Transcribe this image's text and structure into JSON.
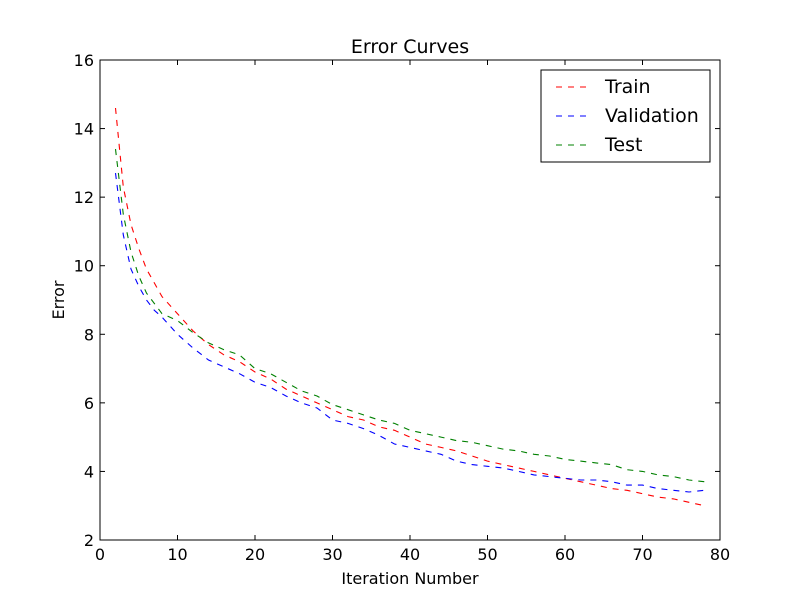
{
  "chart_data": {
    "type": "line",
    "title": "Error Curves",
    "xlabel": "Iteration Number",
    "ylabel": "Error",
    "xlim": [
      0,
      80
    ],
    "ylim": [
      2,
      16
    ],
    "xticks": [
      0,
      10,
      20,
      30,
      40,
      50,
      60,
      70,
      80
    ],
    "yticks": [
      2,
      4,
      6,
      8,
      10,
      12,
      14,
      16
    ],
    "grid": false,
    "legend_position": "top-right",
    "series": [
      {
        "name": "Train",
        "color": "#ff0000",
        "style": "dashed",
        "x": [
          2,
          3,
          4,
          5,
          6,
          7,
          8,
          10,
          12,
          14,
          16,
          18,
          20,
          22,
          24,
          26,
          28,
          30,
          32,
          34,
          36,
          38,
          40,
          42,
          44,
          46,
          48,
          50,
          52,
          54,
          56,
          58,
          60,
          62,
          64,
          66,
          68,
          70,
          72,
          74,
          76,
          78
        ],
        "values": [
          14.6,
          12.3,
          11.2,
          10.5,
          9.9,
          9.5,
          9.1,
          8.6,
          8.1,
          7.7,
          7.4,
          7.2,
          6.9,
          6.7,
          6.4,
          6.2,
          6.0,
          5.8,
          5.6,
          5.5,
          5.3,
          5.2,
          5.0,
          4.8,
          4.7,
          4.6,
          4.45,
          4.3,
          4.2,
          4.1,
          4.0,
          3.9,
          3.8,
          3.7,
          3.6,
          3.5,
          3.45,
          3.35,
          3.25,
          3.2,
          3.1,
          3.0
        ]
      },
      {
        "name": "Validation",
        "color": "#0000ff",
        "style": "dashed",
        "x": [
          2,
          3,
          4,
          5,
          6,
          7,
          8,
          10,
          12,
          14,
          16,
          18,
          20,
          22,
          24,
          26,
          28,
          30,
          32,
          34,
          36,
          38,
          40,
          42,
          44,
          46,
          48,
          50,
          52,
          54,
          56,
          58,
          60,
          62,
          64,
          66,
          68,
          70,
          72,
          74,
          76,
          78
        ],
        "values": [
          12.7,
          10.9,
          9.9,
          9.4,
          9.0,
          8.7,
          8.5,
          8.0,
          7.6,
          7.25,
          7.05,
          6.85,
          6.6,
          6.45,
          6.2,
          6.0,
          5.85,
          5.5,
          5.4,
          5.25,
          5.05,
          4.8,
          4.7,
          4.6,
          4.5,
          4.3,
          4.2,
          4.15,
          4.1,
          4.0,
          3.9,
          3.85,
          3.8,
          3.75,
          3.75,
          3.7,
          3.6,
          3.6,
          3.5,
          3.45,
          3.4,
          3.45
        ]
      },
      {
        "name": "Test",
        "color": "#008000",
        "style": "dashed",
        "x": [
          2,
          3,
          4,
          5,
          6,
          7,
          8,
          10,
          12,
          14,
          16,
          18,
          20,
          22,
          24,
          26,
          28,
          30,
          32,
          34,
          36,
          38,
          40,
          42,
          44,
          46,
          48,
          50,
          52,
          54,
          56,
          58,
          60,
          62,
          64,
          66,
          68,
          70,
          72,
          74,
          76,
          78
        ],
        "values": [
          13.4,
          11.5,
          10.4,
          9.7,
          9.2,
          8.9,
          8.6,
          8.4,
          8.05,
          7.75,
          7.55,
          7.4,
          7.0,
          6.85,
          6.6,
          6.35,
          6.2,
          5.95,
          5.8,
          5.65,
          5.5,
          5.4,
          5.2,
          5.1,
          5.0,
          4.9,
          4.85,
          4.75,
          4.65,
          4.6,
          4.5,
          4.45,
          4.35,
          4.3,
          4.25,
          4.2,
          4.05,
          4.0,
          3.9,
          3.85,
          3.75,
          3.7
        ]
      }
    ]
  }
}
